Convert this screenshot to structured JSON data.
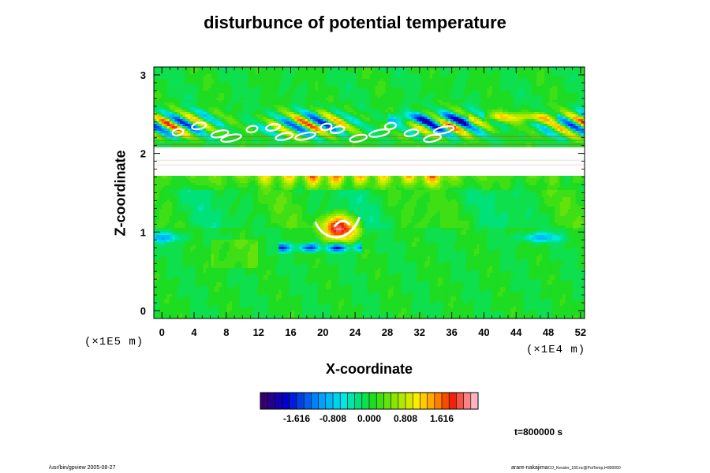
{
  "title": "disturbunce of potential temperature",
  "chart_data": {
    "type": "heatmap",
    "title": "disturbunce of potential temperature",
    "xlabel": "X-coordinate",
    "ylabel": "Z-coordinate",
    "x_unit": "(×1E4 m)",
    "z_unit": "(×1E5 m)",
    "xlim": [
      -1,
      52.5
    ],
    "ylim": [
      -0.1,
      3.1
    ],
    "x_ticks": [
      0,
      4,
      8,
      12,
      16,
      20,
      24,
      28,
      32,
      36,
      40,
      44,
      48,
      52
    ],
    "y_ticks": [
      0,
      1,
      2,
      3
    ],
    "colorbar": {
      "ticks": [
        -1.616,
        -0.808,
        0.0,
        0.808,
        1.616
      ],
      "tick_labels": [
        "-1.616",
        "-0.808",
        "0.000",
        "0.808",
        "1.616"
      ],
      "min": -2.424,
      "max": 2.424,
      "levels": 30
    },
    "features": [
      {
        "kind": "undefined-band",
        "z_range": [
          1.72,
          2.08
        ]
      },
      {
        "kind": "warm-layer",
        "z_range": [
          1.55,
          1.72
        ]
      },
      {
        "kind": "wave-layer",
        "z_range": [
          2.15,
          2.65
        ]
      },
      {
        "kind": "warm-blob",
        "x": 22,
        "z": 1.05
      },
      {
        "kind": "cold-spot",
        "x": 0,
        "z": 0.93
      },
      {
        "kind": "cold-spot",
        "x": 47,
        "z": 0.93
      }
    ]
  },
  "time_label": "t=800000 s",
  "footer": {
    "left": "/usr/bin/gpview 2005-08-27",
    "right_main": "arare-nakajima",
    "right_small": "CO_Kessler_160.nc@PotTemp,t=800000"
  }
}
